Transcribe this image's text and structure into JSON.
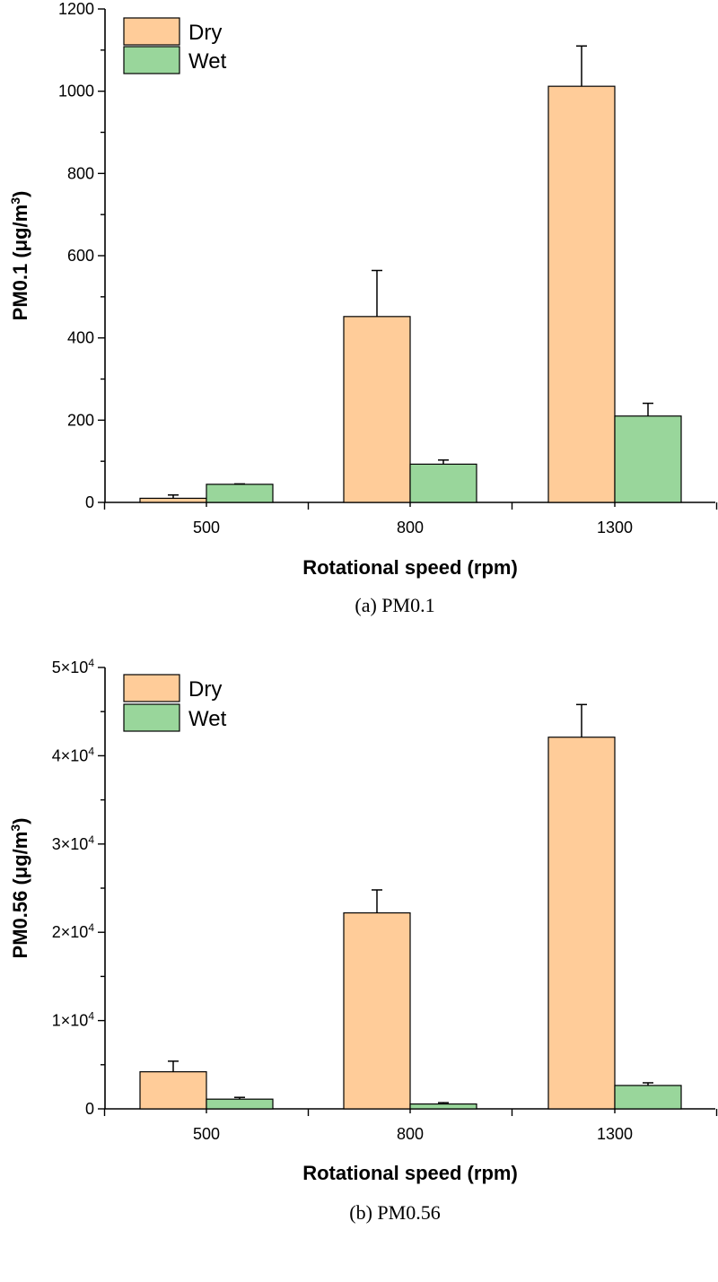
{
  "chart_data": [
    {
      "type": "bar",
      "categories": [
        "500",
        "800",
        "1300"
      ],
      "series": [
        {
          "name": "Dry",
          "values": [
            10,
            452,
            1012
          ],
          "errors": [
            8,
            112,
            98
          ],
          "color": "#FFCC99"
        },
        {
          "name": "Wet",
          "values": [
            44,
            93,
            210
          ],
          "errors": [
            1,
            10,
            31
          ],
          "color": "#99D69B"
        }
      ],
      "xlabel": "Rotational speed (rpm)",
      "ylabel_main": "PM0.1 (μg/m",
      "ylabel_sup": "3",
      "ylabel_close": ")",
      "ylim": [
        0,
        1200
      ],
      "yticks": [
        0,
        200,
        400,
        600,
        800,
        1000,
        1200
      ],
      "ytick_labels": [
        "0",
        "200",
        "400",
        "600",
        "800",
        "1000",
        "1200"
      ],
      "legend_position": "top-left",
      "caption": "(a) PM0.1"
    },
    {
      "type": "bar",
      "categories": [
        "500",
        "800",
        "1300"
      ],
      "series": [
        {
          "name": "Dry",
          "values": [
            4200,
            22200,
            42100
          ],
          "errors": [
            1200,
            2600,
            3700
          ],
          "color": "#FFCC99"
        },
        {
          "name": "Wet",
          "values": [
            1100,
            550,
            2650
          ],
          "errors": [
            200,
            150,
            300
          ],
          "color": "#99D69B"
        }
      ],
      "xlabel": "Rotational speed (rpm)",
      "ylabel_main": "PM0.56 (μg/m",
      "ylabel_sup": "3",
      "ylabel_close": ")",
      "ylim": [
        0,
        50000
      ],
      "yticks": [
        0,
        10000,
        20000,
        30000,
        40000,
        50000
      ],
      "ytick_labels": [
        "0",
        "1×10",
        "2×10",
        "3×10",
        "4×10",
        "5×10"
      ],
      "ytick_exps": [
        "",
        "4",
        "4",
        "4",
        "4",
        "4"
      ],
      "legend_position": "top-left",
      "caption": "(b) PM0.56"
    }
  ]
}
